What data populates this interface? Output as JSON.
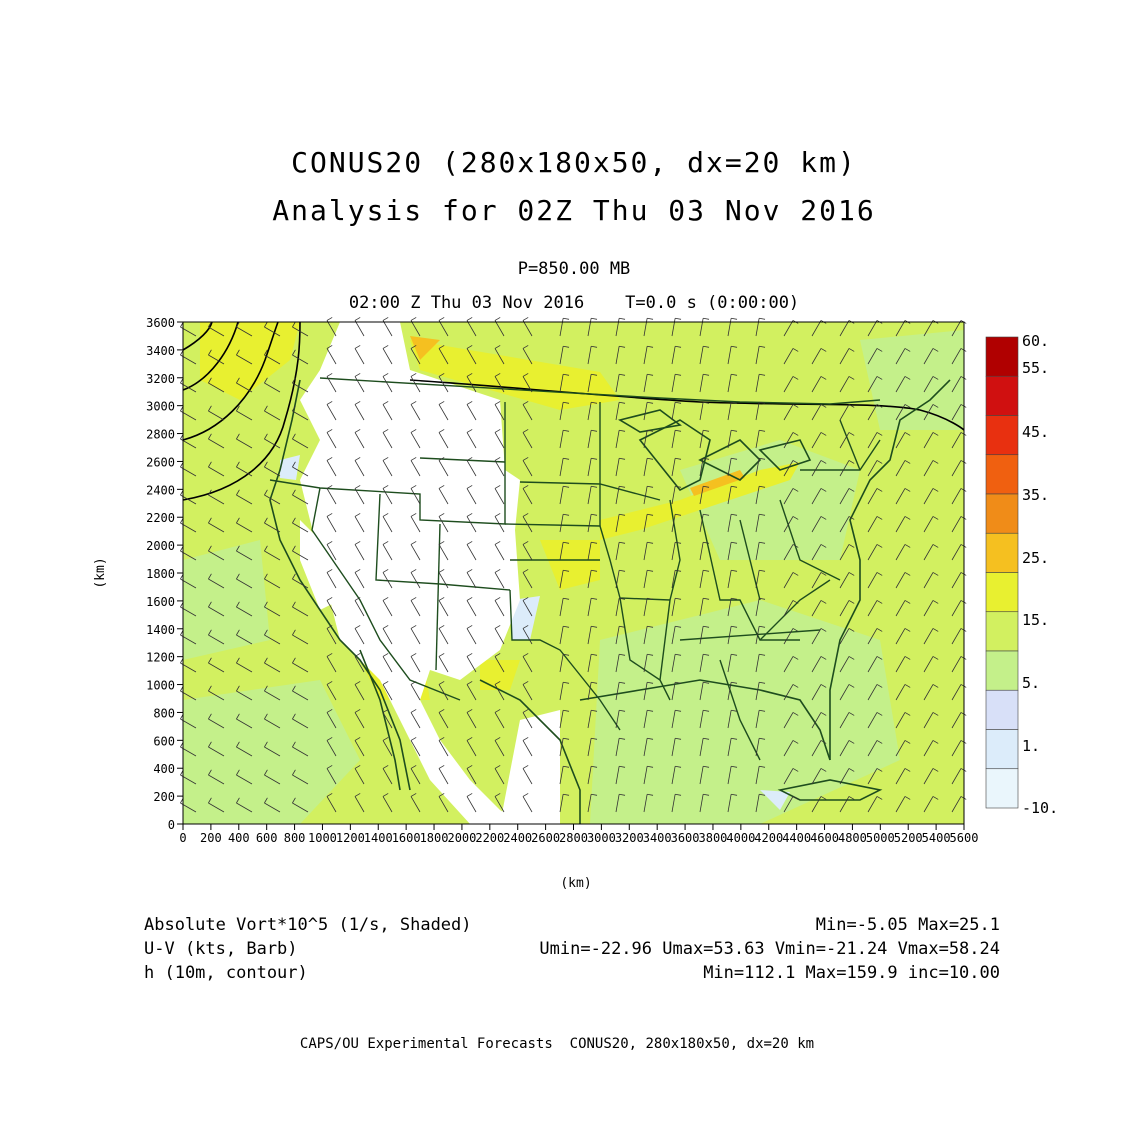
{
  "header": {
    "title_line1": "CONUS20 (280x180x50, dx=20 km)",
    "title_line2": "Analysis for 02Z Thu 03 Nov 2016",
    "level": "P=850.00 MB",
    "time": "02:00 Z Thu 03 Nov 2016    T=0.0 s (0:00:00)"
  },
  "axes": {
    "x_ticks": [
      "0",
      "200",
      "400",
      "600",
      "800",
      "1000",
      "1200",
      "1400",
      "1600",
      "1800",
      "2000",
      "2200",
      "2400",
      "2600",
      "2800",
      "3000",
      "3200",
      "3400",
      "3600",
      "3800",
      "4000",
      "4200",
      "4400",
      "4600",
      "4800",
      "5000",
      "5200",
      "5400",
      "5600"
    ],
    "y_ticks": [
      "0",
      "200",
      "400",
      "600",
      "800",
      "1000",
      "1200",
      "1400",
      "1600",
      "1800",
      "2000",
      "2200",
      "2400",
      "2600",
      "2800",
      "3000",
      "3200",
      "3400",
      "3600"
    ],
    "x_unit": "(km)",
    "y_unit": "(km)"
  },
  "colorbar": {
    "labels": [
      "60.",
      "55.",
      "45.",
      "35.",
      "25.",
      "15.",
      "5.",
      "1.",
      "-10."
    ],
    "colors": [
      "#b00000",
      "#d01010",
      "#e83010",
      "#f06010",
      "#f08c18",
      "#f5c020",
      "#e8f030",
      "#d2f060",
      "#c4f08a",
      "#d8e0f8",
      "#dcecfa",
      "#eaf6fc"
    ]
  },
  "field_colors": {
    "base": "#d2f060",
    "light": "#c4f08a",
    "yellow": "#e8f030",
    "orange": "#f5c020",
    "blue": "#dcecfa",
    "state_lines": "#1e4d1e",
    "barbs": "#333333"
  },
  "legend": {
    "row1_left": "Absolute Vort*10^5 (1/s, Shaded)",
    "row1_right": "Min=-5.05 Max=25.1",
    "row2_left": "U-V (kts, Barb)",
    "row2_right": "Umin=-22.96 Umax=53.63 Vmin=-21.24 Vmax=58.24",
    "row3_left": "h (10m, contour)",
    "row3_right": "Min=112.1 Max=159.9 inc=10.00"
  },
  "footer": "CAPS/OU Experimental Forecasts  CONUS20, 280x180x50, dx=20 km"
}
